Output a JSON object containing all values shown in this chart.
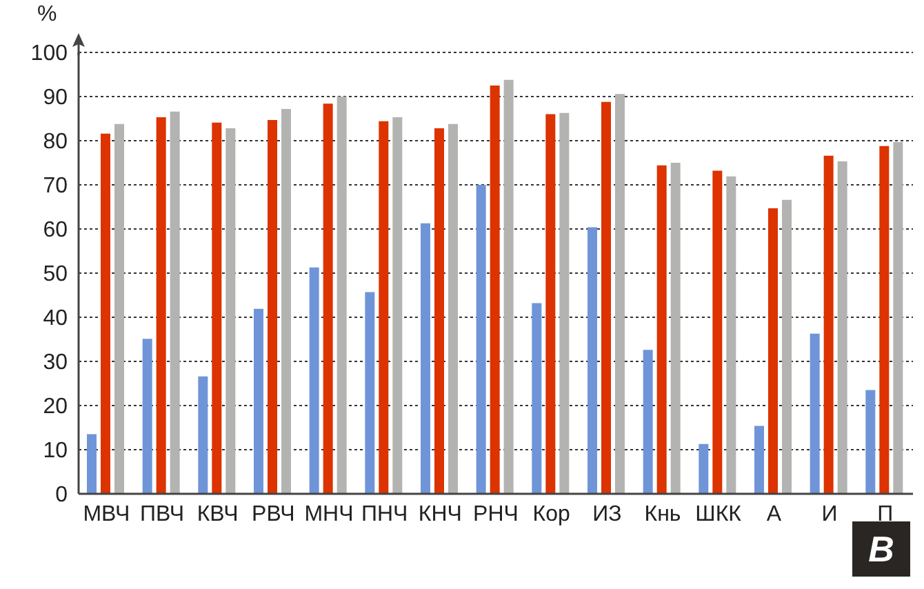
{
  "chart_data": {
    "type": "bar",
    "ylabel": "%",
    "categories": [
      "МВЧ",
      "ПВЧ",
      "КВЧ",
      "РВЧ",
      "МНЧ",
      "ПНЧ",
      "КНЧ",
      "РНЧ",
      "Кор",
      "ИЗ",
      "Кнь",
      "ШКК",
      "А",
      "И",
      "П"
    ],
    "series": [
      {
        "color": "#6f95d8",
        "values": [
          13.5,
          35.1,
          26.6,
          41.9,
          51.3,
          45.7,
          61.3,
          70.0,
          43.2,
          60.4,
          32.6,
          11.3,
          15.4,
          36.3,
          23.5
        ]
      },
      {
        "color": "#dc3300",
        "values": [
          81.6,
          85.3,
          84.1,
          84.7,
          88.4,
          84.4,
          82.8,
          92.5,
          86.0,
          88.8,
          74.4,
          73.2,
          64.7,
          76.6,
          78.8
        ]
      },
      {
        "color": "#b3b3b1",
        "values": [
          83.8,
          86.6,
          82.8,
          87.2,
          90.0,
          85.3,
          83.8,
          93.8,
          86.3,
          90.6,
          75.0,
          71.9,
          66.6,
          75.3,
          79.7
        ]
      }
    ],
    "ylim": [
      0,
      100
    ],
    "yticks": [
      0,
      10,
      20,
      30,
      40,
      50,
      60,
      70,
      80,
      90,
      100
    ],
    "grid": "y",
    "legend": false,
    "annotations": [
      "В"
    ]
  }
}
